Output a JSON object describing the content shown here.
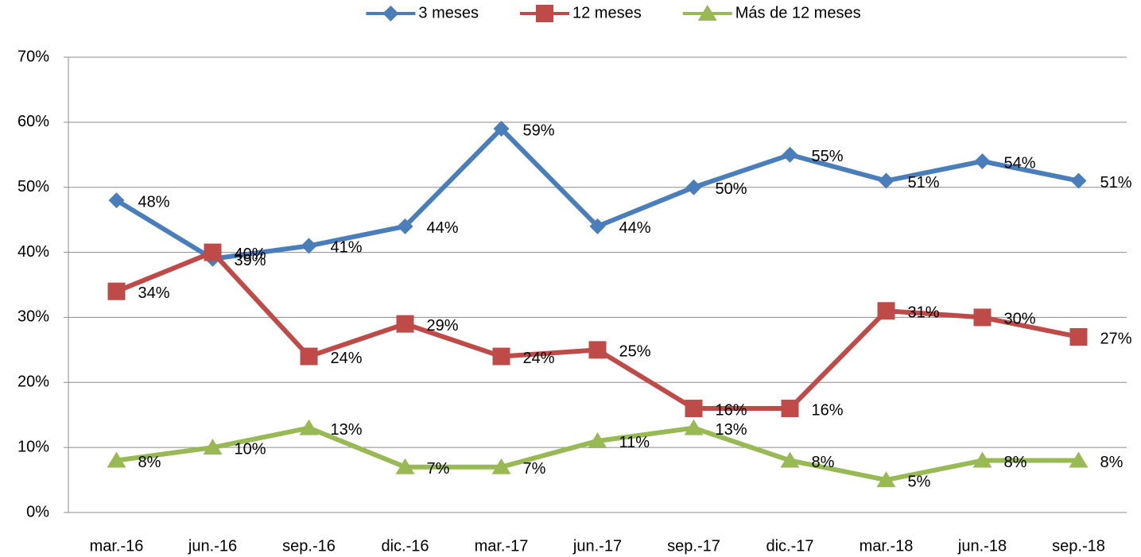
{
  "chart_data": {
    "type": "line",
    "categories": [
      "mar.-16",
      "jun.-16",
      "sep.-16",
      "dic.-16",
      "mar.-17",
      "jun.-17",
      "sep.-17",
      "dic.-17",
      "mar.-18",
      "jun.-18",
      "sep.-18"
    ],
    "series": [
      {
        "name": "3 meses",
        "color": "#4a7ebb",
        "marker": "diamond",
        "values": [
          48,
          39,
          41,
          44,
          59,
          44,
          50,
          55,
          51,
          54,
          51
        ],
        "value_labels": [
          "48%",
          "39%",
          "41%",
          "44%",
          "59%",
          "44%",
          "50%",
          "55%",
          "51%",
          "54%",
          "51%"
        ]
      },
      {
        "name": "12 meses",
        "color": "#be4b48",
        "marker": "square",
        "values": [
          34,
          40,
          24,
          29,
          24,
          25,
          16,
          16,
          31,
          30,
          27
        ],
        "value_labels": [
          "34%",
          "40%",
          "24%",
          "29%",
          "24%",
          "25%",
          "16%",
          "16%",
          "31%",
          "30%",
          "27%"
        ]
      },
      {
        "name": "Más de 12 meses",
        "color": "#98b954",
        "marker": "triangle",
        "values": [
          8,
          10,
          13,
          7,
          7,
          11,
          13,
          8,
          5,
          8,
          8
        ],
        "value_labels": [
          "8%",
          "10%",
          "13%",
          "7%",
          "7%",
          "11%",
          "13%",
          "8%",
          "5%",
          "8%",
          "8%"
        ]
      }
    ],
    "ylim": [
      0,
      70
    ],
    "yticks": [
      {
        "value": 0,
        "label": "0%"
      },
      {
        "value": 10,
        "label": "10%"
      },
      {
        "value": 20,
        "label": "20%"
      },
      {
        "value": 30,
        "label": "30%"
      },
      {
        "value": 40,
        "label": "40%"
      },
      {
        "value": 50,
        "label": "50%"
      },
      {
        "value": 60,
        "label": "60%"
      },
      {
        "value": 70,
        "label": "70%"
      }
    ],
    "grid": true,
    "legend": "top"
  }
}
